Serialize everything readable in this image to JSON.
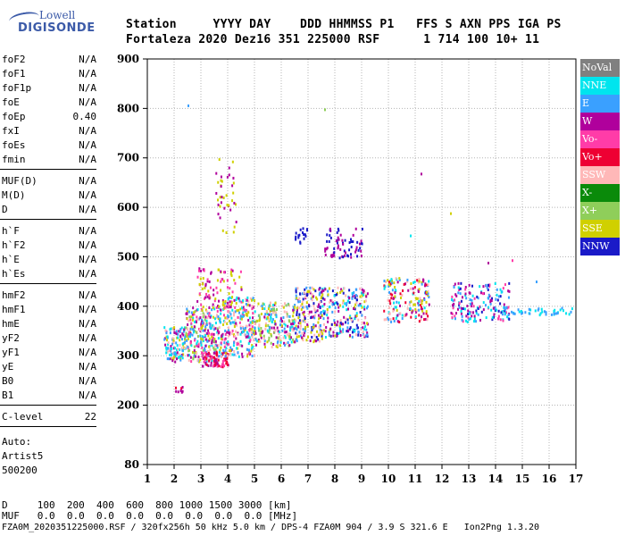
{
  "logo": {
    "line1": "Lowell",
    "line2": "DIGISONDE"
  },
  "header": {
    "line1": "Station     YYYY DAY    DDD HHMMSS P1   FFS S AXN PPS IGA PS",
    "line2": "Fortaleza 2020 Dez16 351 225000 RSF      1 714 100 10+ 11"
  },
  "params_group1": [
    {
      "label": "foF2",
      "value": "N/A"
    },
    {
      "label": "foF1",
      "value": "N/A"
    },
    {
      "label": "foF1p",
      "value": "N/A"
    },
    {
      "label": "foE",
      "value": "N/A"
    },
    {
      "label": "foEp",
      "value": "0.40"
    },
    {
      "label": "fxI",
      "value": "N/A"
    },
    {
      "label": "foEs",
      "value": "N/A"
    },
    {
      "label": "fmin",
      "value": "N/A"
    }
  ],
  "params_group2": [
    {
      "label": "MUF(D)",
      "value": "N/A"
    },
    {
      "label": "M(D)",
      "value": "N/A"
    },
    {
      "label": "D",
      "value": "N/A"
    }
  ],
  "params_group3": [
    {
      "label": "h`F",
      "value": "N/A"
    },
    {
      "label": "h`F2",
      "value": "N/A"
    },
    {
      "label": "h`E",
      "value": "N/A"
    },
    {
      "label": "h`Es",
      "value": "N/A"
    }
  ],
  "params_group4": [
    {
      "label": "hmF2",
      "value": "N/A"
    },
    {
      "label": "hmF1",
      "value": "N/A"
    },
    {
      "label": "hmE",
      "value": "N/A"
    },
    {
      "label": "yF2",
      "value": "N/A"
    },
    {
      "label": "yF1",
      "value": "N/A"
    },
    {
      "label": "yE",
      "value": "N/A"
    },
    {
      "label": "B0",
      "value": "N/A"
    },
    {
      "label": "B1",
      "value": "N/A"
    }
  ],
  "clevel": {
    "label": "C-level",
    "value": "22"
  },
  "auto": {
    "line1": "Auto:",
    "line2": "Artist5",
    "line3": "500200"
  },
  "legend": [
    {
      "label": "NoVal",
      "color": "#808080"
    },
    {
      "label": "NNE",
      "color": "#00e5ee"
    },
    {
      "label": "E",
      "color": "#3aa0ff"
    },
    {
      "label": "W",
      "color": "#b0009c"
    },
    {
      "label": "Vo-",
      "color": "#ff3ca8"
    },
    {
      "label": "Vo+",
      "color": "#ee0033"
    },
    {
      "label": "SSW",
      "color": "#ffb8b8"
    },
    {
      "label": "X-",
      "color": "#0a8a0a"
    },
    {
      "label": "X+",
      "color": "#8fce5a"
    },
    {
      "label": "SSE",
      "color": "#d0d000"
    },
    {
      "label": "NNW",
      "color": "#1a1ac8"
    }
  ],
  "footer": {
    "d_line": "D     100  200  400  600  800 1000 1500 3000 [km]",
    "muf_line": "MUF   0.0  0.0  0.0  0.0  0.0  0.0  0.0  0.0 [MHz]",
    "file_line": "FZA0M_2020351225000.RSF / 320fx256h 50 kHz 5.0 km / DPS-4 FZA0M 904 / 3.9 S 321.6 E   Ion2Png 1.3.20"
  },
  "chart_data": {
    "type": "scatter",
    "xlim": [
      1,
      17
    ],
    "ylim": [
      80,
      900
    ],
    "x_ticks": [
      1,
      2,
      3,
      4,
      5,
      6,
      7,
      8,
      9,
      10,
      11,
      12,
      13,
      14,
      15,
      16,
      17
    ],
    "y_ticks": [
      80,
      200,
      300,
      400,
      500,
      600,
      700,
      800,
      900
    ],
    "grid": true,
    "clusters": [
      {
        "x0": 1.6,
        "x1": 2.4,
        "y0": 290,
        "y1": 360,
        "n": 120,
        "colors": [
          "#3aa0ff",
          "#00e5ee",
          "#d0d000",
          "#ffb8b8",
          "#b0009c"
        ]
      },
      {
        "x0": 2.4,
        "x1": 3.6,
        "y0": 290,
        "y1": 400,
        "n": 260,
        "colors": [
          "#3aa0ff",
          "#d0d000",
          "#b0009c",
          "#ff3ca8",
          "#ffb8b8",
          "#00e5ee",
          "#8fce5a"
        ]
      },
      {
        "x0": 3.0,
        "x1": 4.0,
        "y0": 280,
        "y1": 310,
        "n": 80,
        "colors": [
          "#b0009c",
          "#ff3ca8",
          "#ee0033"
        ]
      },
      {
        "x0": 3.6,
        "x1": 5.0,
        "y0": 300,
        "y1": 420,
        "n": 280,
        "colors": [
          "#3aa0ff",
          "#d0d000",
          "#b0009c",
          "#ffb8b8",
          "#00e5ee",
          "#ff3ca8"
        ]
      },
      {
        "x0": 2.8,
        "x1": 4.5,
        "y0": 400,
        "y1": 480,
        "n": 90,
        "colors": [
          "#b0009c",
          "#ff3ca8",
          "#d0d000"
        ]
      },
      {
        "x0": 5.0,
        "x1": 6.5,
        "y0": 320,
        "y1": 410,
        "n": 220,
        "colors": [
          "#3aa0ff",
          "#d0d000",
          "#00e5ee",
          "#ffb8b8",
          "#b0009c",
          "#8fce5a"
        ]
      },
      {
        "x0": 6.5,
        "x1": 7.5,
        "y0": 330,
        "y1": 440,
        "n": 180,
        "colors": [
          "#3aa0ff",
          "#d0d000",
          "#b0009c",
          "#ffb8b8",
          "#1a1ac8"
        ]
      },
      {
        "x0": 7.5,
        "x1": 9.2,
        "y0": 340,
        "y1": 440,
        "n": 220,
        "colors": [
          "#d0d000",
          "#3aa0ff",
          "#1a1ac8",
          "#b0009c",
          "#ffb8b8",
          "#00e5ee"
        ]
      },
      {
        "x0": 7.6,
        "x1": 9.0,
        "y0": 500,
        "y1": 560,
        "n": 70,
        "colors": [
          "#1a1ac8",
          "#b0009c"
        ]
      },
      {
        "x0": 6.5,
        "x1": 7.0,
        "y0": 530,
        "y1": 560,
        "n": 18,
        "colors": [
          "#1a1ac8"
        ]
      },
      {
        "x0": 9.8,
        "x1": 11.5,
        "y0": 370,
        "y1": 460,
        "n": 170,
        "colors": [
          "#d0d000",
          "#3aa0ff",
          "#b0009c",
          "#ffb8b8",
          "#00e5ee",
          "#ee0033"
        ]
      },
      {
        "x0": 12.3,
        "x1": 14.5,
        "y0": 370,
        "y1": 450,
        "n": 170,
        "colors": [
          "#3aa0ff",
          "#00e5ee",
          "#b0009c",
          "#1a1ac8",
          "#ff3ca8"
        ]
      },
      {
        "x0": 14.2,
        "x1": 17.0,
        "y0": 385,
        "y1": 400,
        "n": 45,
        "colors": [
          "#3aa0ff",
          "#00e5ee"
        ]
      },
      {
        "x0": 3.5,
        "x1": 4.3,
        "y0": 550,
        "y1": 700,
        "n": 40,
        "colors": [
          "#d0d000",
          "#b0009c"
        ]
      },
      {
        "x0": 2.0,
        "x1": 2.3,
        "y0": 215,
        "y1": 240,
        "n": 8,
        "colors": [
          "#b0009c",
          "#ee0033"
        ]
      }
    ],
    "points": [
      {
        "x": 2.5,
        "y": 808,
        "color": "#3aa0ff"
      },
      {
        "x": 7.6,
        "y": 800,
        "color": "#8fce5a"
      },
      {
        "x": 10.8,
        "y": 545,
        "color": "#00e5ee"
      },
      {
        "x": 12.3,
        "y": 590,
        "color": "#d0d000"
      },
      {
        "x": 15.5,
        "y": 452,
        "color": "#3aa0ff"
      },
      {
        "x": 11.2,
        "y": 670,
        "color": "#b0009c"
      },
      {
        "x": 14.6,
        "y": 495,
        "color": "#ff3ca8"
      },
      {
        "x": 13.7,
        "y": 490,
        "color": "#b0009c"
      }
    ]
  }
}
